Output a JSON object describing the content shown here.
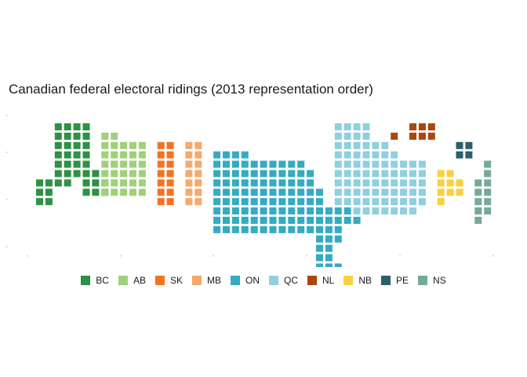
{
  "chart_data": {
    "type": "tile-map",
    "title": "Canadian federal electoral ridings (2013 representation order)",
    "xlabel": "",
    "ylabel": "",
    "unit": "one square = one riding",
    "legend_position": "bottom",
    "grid": false,
    "provinces": [
      {
        "code": "BC",
        "color": "#2e9144",
        "ridings": 42
      },
      {
        "code": "AB",
        "color": "#9fd17a",
        "ridings": 34
      },
      {
        "code": "SK",
        "color": "#f47321",
        "ridings": 14
      },
      {
        "code": "MB",
        "color": "#f6a96b",
        "ridings": 14
      },
      {
        "code": "ON",
        "color": "#35abc2",
        "ridings": 121
      },
      {
        "code": "QC",
        "color": "#8fd0de",
        "ridings": 78
      },
      {
        "code": "NL",
        "color": "#a9470f",
        "ridings": 7
      },
      {
        "code": "NB",
        "color": "#f8d040",
        "ridings": 10
      },
      {
        "code": "PE",
        "color": "#2b5f69",
        "ridings": 4
      },
      {
        "code": "NS",
        "color": "#76a99a",
        "ridings": 11
      }
    ]
  }
}
